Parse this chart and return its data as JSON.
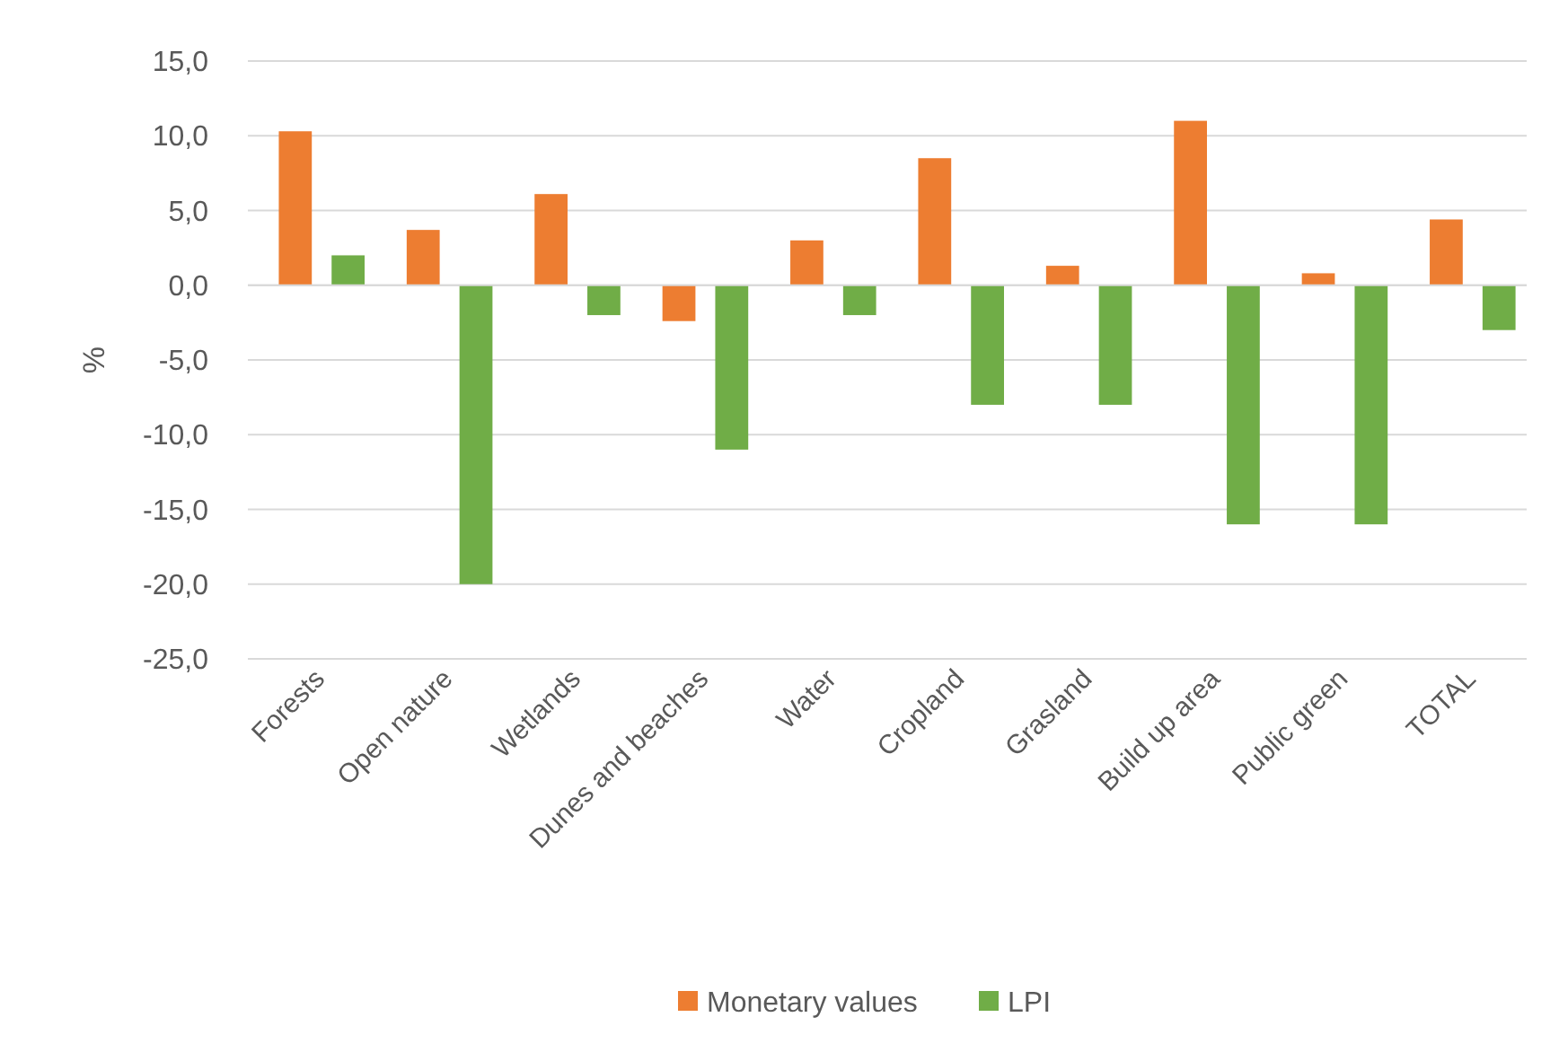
{
  "chart_data": {
    "type": "bar",
    "ylabel": "%",
    "categories": [
      "Forests",
      "Open nature",
      "Wetlands",
      "Dunes and beaches",
      "Water",
      "Cropland",
      "Grasland",
      "Build up area",
      "Public green",
      "TOTAL"
    ],
    "series": [
      {
        "name": "Monetary values",
        "color": "#ed7d31",
        "values": [
          10.3,
          3.7,
          6.1,
          -2.4,
          3.0,
          8.5,
          1.3,
          11.0,
          0.8,
          4.4
        ]
      },
      {
        "name": "LPI",
        "color": "#70ad47",
        "values": [
          2.0,
          -20.0,
          -2.0,
          -11.0,
          -2.0,
          -8.0,
          -8.0,
          -16.0,
          -16.0,
          -3.0
        ]
      }
    ],
    "ylim": [
      -25,
      15
    ],
    "yticks": [
      {
        "value": 15,
        "label": "15,0"
      },
      {
        "value": 10,
        "label": "10,0"
      },
      {
        "value": 5,
        "label": "5,0"
      },
      {
        "value": 0,
        "label": "0,0"
      },
      {
        "value": -5,
        "label": "-5,0"
      },
      {
        "value": -10,
        "label": "-10,0"
      },
      {
        "value": -15,
        "label": "-15,0"
      },
      {
        "value": -20,
        "label": "-20,0"
      },
      {
        "value": -25,
        "label": "-25,0"
      }
    ],
    "grid": true,
    "legend": "bottom"
  }
}
